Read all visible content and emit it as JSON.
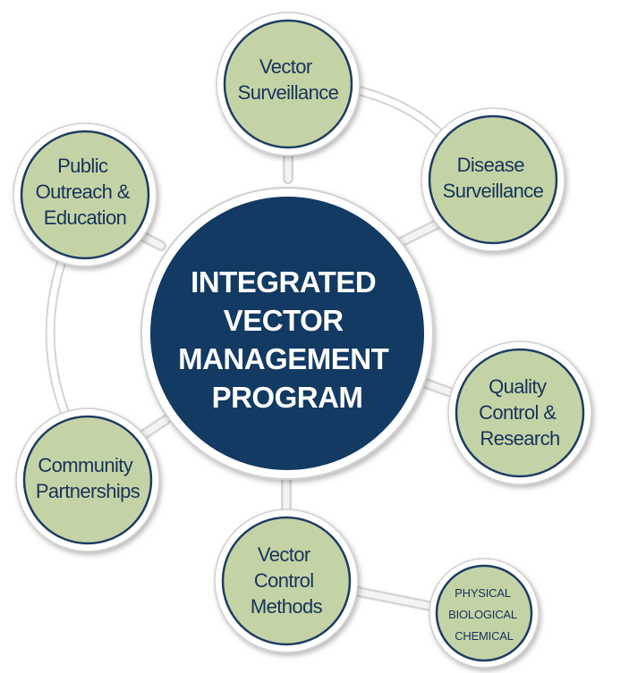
{
  "colors": {
    "center_fill": "#123a63",
    "node_fill": "#c4d3a5",
    "node_border": "#1d3c63",
    "connector": "#e6e6e6",
    "text_dark": "#16335a",
    "text_light": "#ffffff"
  },
  "center": {
    "lines": [
      "INTEGRATED",
      "VECTOR",
      "MANAGEMENT",
      "PROGRAM"
    ]
  },
  "nodes": {
    "vector_surveillance": {
      "lines": [
        "Vector",
        "Surveillance"
      ]
    },
    "disease_surveillance": {
      "lines": [
        "Disease",
        "Surveillance"
      ]
    },
    "quality_control": {
      "lines": [
        "Quality",
        "Control &",
        "Research"
      ]
    },
    "vector_control": {
      "lines": [
        "Vector",
        "Control",
        "Methods"
      ]
    },
    "community": {
      "lines": [
        "Community",
        "Partnerships"
      ]
    },
    "public_outreach": {
      "lines": [
        "Public",
        "Outreach &",
        "Education"
      ]
    },
    "methods_types": {
      "lines": [
        "PHYSICAL",
        "BIOLOGICAL",
        "CHEMICAL"
      ]
    }
  }
}
